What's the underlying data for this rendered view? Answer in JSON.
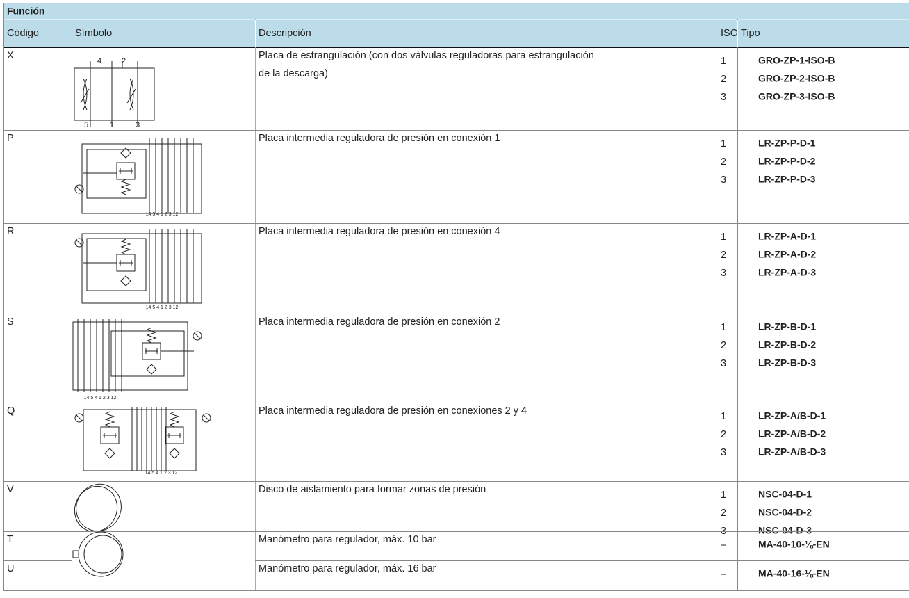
{
  "table": {
    "title": "Función",
    "columns": [
      "Código",
      "Símbolo",
      "Descripción",
      "ISO",
      "Tipo"
    ],
    "rows": [
      {
        "code": "X",
        "symbol_labels": [
          "4",
          "2",
          "5",
          "1",
          "3"
        ],
        "description": [
          "Placa de estrangulación (con dos válvulas reguladoras para estrangulación",
          "de la descarga)"
        ],
        "iso": [
          "1",
          "2",
          "3"
        ],
        "tipo": [
          "GRO-ZP-1-ISO-B",
          "GRO-ZP-2-ISO-B",
          "GRO-ZP-3-ISO-B"
        ]
      },
      {
        "code": "P",
        "symbol_labels": [
          "14 5 4 1 2 3 12"
        ],
        "description": [
          "Placa intermedia reguladora de presión en conexión 1"
        ],
        "iso": [
          "1",
          "2",
          "3"
        ],
        "tipo": [
          "LR-ZP-P-D-1",
          "LR-ZP-P-D-2",
          "LR-ZP-P-D-3"
        ]
      },
      {
        "code": "R",
        "symbol_labels": [
          "14 5 4 1 2 3 12"
        ],
        "description": [
          "Placa intermedia reguladora de presión en conexión 4"
        ],
        "iso": [
          "1",
          "2",
          "3"
        ],
        "tipo": [
          "LR-ZP-A-D-1",
          "LR-ZP-A-D-2",
          "LR-ZP-A-D-3"
        ]
      },
      {
        "code": "S",
        "symbol_labels": [
          "14 5 4 1 2 3 12"
        ],
        "description": [
          "Placa intermedia reguladora de presión en conexión 2"
        ],
        "iso": [
          "1",
          "2",
          "3"
        ],
        "tipo": [
          "LR-ZP-B-D-1",
          "LR-ZP-B-D-2",
          "LR-ZP-B-D-3"
        ]
      },
      {
        "code": "Q",
        "symbol_labels": [
          "14 5 4 1 2 3 12"
        ],
        "description": [
          "Placa intermedia reguladora de presión en conexiones 2 y 4"
        ],
        "iso": [
          "1",
          "2",
          "3"
        ],
        "tipo": [
          "LR-ZP-A/B-D-1",
          "LR-ZP-A/B-D-2",
          "LR-ZP-A/B-D-3"
        ]
      },
      {
        "code": "V",
        "symbol_labels": [],
        "description": [
          "Disco de aislamiento para formar zonas de presión"
        ],
        "iso": [
          "1",
          "2",
          "3"
        ],
        "tipo": [
          "NSC-04-D-1",
          "NSC-04-D-2",
          "NSC-04-D-3"
        ]
      },
      {
        "code": "T",
        "symbol_labels": [],
        "description": [
          "Manómetro para regulador, máx. 10 bar"
        ],
        "iso": [
          "–"
        ],
        "tipo": [
          "MA-40-10-⅛-EN"
        ]
      },
      {
        "code": "U",
        "symbol_labels": [],
        "description": [
          "Manómetro para regulador, máx. 16 bar"
        ],
        "iso": [
          "–"
        ],
        "tipo": [
          "MA-40-16-⅛-EN"
        ]
      }
    ]
  }
}
